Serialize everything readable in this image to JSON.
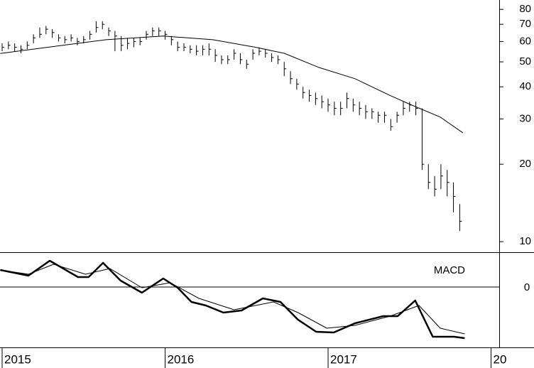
{
  "chart_data": [
    {
      "type": "hlc",
      "log": true,
      "xlim": [
        -0.34,
        79.3
      ],
      "ylim": [
        9.1,
        87
      ],
      "yticks": [
        10,
        20,
        30,
        40,
        50,
        60,
        70,
        80
      ],
      "color": "#000000",
      "series": [
        {
          "name": "price",
          "color": "#000000",
          "values": [
            57,
            58,
            57,
            56,
            58,
            62,
            64,
            67,
            65,
            62,
            61,
            62,
            60,
            61,
            64,
            68,
            70,
            66,
            63,
            58,
            59,
            60,
            60,
            64,
            66,
            66,
            64,
            61,
            57,
            57,
            56,
            55,
            56,
            56,
            53,
            51,
            51,
            54,
            51,
            49,
            54,
            55,
            54,
            52,
            51,
            47,
            43,
            41,
            38,
            37,
            36,
            35,
            34,
            33,
            33,
            36,
            34,
            33,
            32,
            32,
            31,
            31,
            28,
            31,
            33,
            34,
            33,
            20,
            17,
            16,
            18,
            17,
            15,
            12
          ],
          "high": [
            59,
            60,
            59,
            58,
            60,
            64,
            68,
            69,
            67,
            64,
            63,
            64,
            62,
            63,
            66,
            72,
            72,
            68,
            66,
            63,
            62,
            62,
            62,
            66,
            68,
            68,
            66,
            63,
            60,
            59,
            58,
            58,
            58,
            59,
            56,
            53,
            53,
            56,
            54,
            51,
            56,
            57,
            56,
            54,
            53,
            50,
            46,
            43,
            40,
            39,
            38,
            37,
            36,
            35,
            35,
            38,
            36,
            35,
            34,
            33,
            32,
            32,
            30,
            32,
            35,
            35,
            35,
            33,
            20,
            18,
            20,
            19,
            17,
            14
          ],
          "low": [
            55,
            56,
            55,
            54,
            56,
            59,
            62,
            64,
            62,
            60,
            59,
            60,
            58,
            59,
            61,
            65,
            67,
            63,
            55,
            55,
            56,
            57,
            58,
            61,
            63,
            63,
            61,
            58,
            55,
            55,
            54,
            53,
            53,
            53,
            50,
            49,
            49,
            51,
            49,
            47,
            51,
            53,
            52,
            50,
            49,
            44,
            41,
            39,
            36,
            35,
            34,
            33,
            32,
            31,
            31,
            33,
            32,
            31,
            30,
            30,
            29,
            29,
            27,
            29,
            31,
            32,
            31,
            19,
            16,
            15,
            16,
            15,
            13,
            11
          ]
        },
        {
          "name": "moving-average",
          "color": "#000000",
          "x": [
            -0.3,
            16.6,
            25.7,
            33.6,
            40.4,
            45.0,
            50.6,
            56.3,
            61.9,
            65.3,
            69.9,
            73.5
          ],
          "values": [
            53.9,
            61,
            63,
            61,
            57,
            54,
            47.5,
            43,
            37,
            34,
            30.5,
            26.5
          ]
        }
      ]
    },
    {
      "type": "line",
      "title": "MACD",
      "xlim": [
        -0.34,
        79.3
      ],
      "ylim": [
        -8.6,
        4.9
      ],
      "yticks": [
        0
      ],
      "xticks": [
        {
          "value": 0,
          "label": "2015"
        },
        {
          "value": 26,
          "label": "2016"
        },
        {
          "value": 52,
          "label": "2017"
        },
        {
          "value": 78,
          "label": "20"
        }
      ],
      "series": [
        {
          "name": "macd",
          "color": "#000000",
          "width": 2.5,
          "x": [
            -0.3,
            4.2,
            7.6,
            12.1,
            13.8,
            16.1,
            18.9,
            22.3,
            25.7,
            28.0,
            30.2,
            32.5,
            35.3,
            38.2,
            41.6,
            44.4,
            47.2,
            50.1,
            52.9,
            56.3,
            60.8,
            63.1,
            65.9,
            68.7,
            72.1,
            73.8
          ],
          "values": [
            2.4,
            1.6,
            3.7,
            1.4,
            1.4,
            3.4,
            0.9,
            -0.8,
            1.2,
            -0.1,
            -2.1,
            -2.6,
            -3.6,
            -3.3,
            -1.6,
            -2.1,
            -4.6,
            -6.3,
            -6.4,
            -5.1,
            -4.1,
            -4.1,
            -1.9,
            -7.0,
            -7.0,
            -7.2
          ]
        },
        {
          "name": "signal",
          "color": "#000000",
          "width": 1,
          "x": [
            -0.3,
            4.2,
            8.2,
            13.3,
            17.2,
            22.3,
            26.8,
            31.4,
            37.0,
            43.3,
            47.2,
            51.8,
            56.3,
            61.9,
            66.5,
            69.9,
            73.8
          ],
          "values": [
            2.4,
            1.8,
            3.2,
            1.8,
            2.6,
            -0.1,
            0.6,
            -1.6,
            -3.2,
            -2.1,
            -3.6,
            -5.8,
            -5.4,
            -4.1,
            -2.6,
            -5.8,
            -6.6
          ]
        }
      ]
    }
  ]
}
